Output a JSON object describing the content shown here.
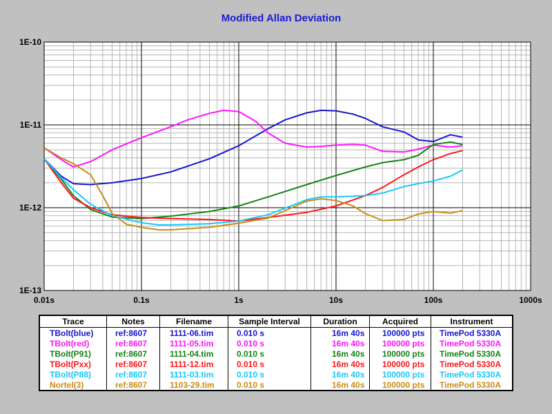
{
  "chart_data": {
    "type": "line",
    "title": "Modified Allan Deviation",
    "xscale": "log",
    "yscale": "log",
    "xlim": [
      0.01,
      1000
    ],
    "ylim": [
      1e-13,
      1e-10
    ],
    "x_tick_labels": [
      "0.01s",
      "0.1s",
      "1s",
      "10s",
      "100s",
      "1000s"
    ],
    "y_tick_labels": [
      "1E-10",
      "1E-11",
      "1E-12",
      "1E-13"
    ],
    "grid": true,
    "series": [
      {
        "name": "TBolt(blue)",
        "color": "#1414d2",
        "x": [
          0.01,
          0.015,
          0.02,
          0.03,
          0.05,
          0.1,
          0.2,
          0.5,
          1,
          2,
          3,
          5,
          7,
          10,
          15,
          20,
          30,
          50,
          70,
          100,
          150,
          200
        ],
        "y": [
          3.9e-12,
          2.4e-12,
          1.95e-12,
          1.9e-12,
          2e-12,
          2.25e-12,
          2.7e-12,
          3.9e-12,
          5.6e-12,
          9e-12,
          1.15e-11,
          1.4e-11,
          1.5e-11,
          1.48e-11,
          1.35e-11,
          1.2e-11,
          9.5e-12,
          8.2e-12,
          6.6e-12,
          6.3e-12,
          7.6e-12,
          7.1e-12
        ]
      },
      {
        "name": "TBolt(red)",
        "color": "#ff14ff",
        "x": [
          0.01,
          0.015,
          0.02,
          0.03,
          0.05,
          0.1,
          0.2,
          0.3,
          0.5,
          0.7,
          1,
          1.5,
          2,
          3,
          5,
          7,
          10,
          15,
          20,
          30,
          50,
          70,
          100,
          150,
          200
        ],
        "y": [
          5.3e-12,
          3.8e-12,
          3.1e-12,
          3.6e-12,
          5e-12,
          7e-12,
          9.5e-12,
          1.15e-11,
          1.38e-11,
          1.5e-11,
          1.45e-11,
          1.1e-11,
          8e-12,
          6e-12,
          5.4e-12,
          5.5e-12,
          5.7e-12,
          5.8e-12,
          5.7e-12,
          4.8e-12,
          4.7e-12,
          5.1e-12,
          5.7e-12,
          5.4e-12,
          5.6e-12
        ]
      },
      {
        "name": "TBolt(P91)",
        "color": "#148214",
        "x": [
          0.01,
          0.015,
          0.02,
          0.03,
          0.05,
          0.1,
          0.2,
          0.5,
          1,
          2,
          5,
          10,
          20,
          30,
          50,
          70,
          100,
          150,
          200
        ],
        "y": [
          3.9e-12,
          2.2e-12,
          1.4e-12,
          9.5e-13,
          7.7e-13,
          7.4e-13,
          7.9e-13,
          9e-13,
          1.05e-12,
          1.35e-12,
          1.9e-12,
          2.45e-12,
          3.1e-12,
          3.5e-12,
          3.8e-12,
          4.3e-12,
          5.8e-12,
          6.2e-12,
          5.8e-12
        ]
      },
      {
        "name": "TBolt(Pxx)",
        "color": "#ff1414",
        "x": [
          0.01,
          0.015,
          0.02,
          0.03,
          0.05,
          0.1,
          0.2,
          0.5,
          1,
          2,
          5,
          10,
          20,
          30,
          50,
          70,
          100,
          150,
          200
        ],
        "y": [
          3.9e-12,
          2e-12,
          1.3e-12,
          1e-12,
          8.2e-13,
          7.6e-13,
          7.4e-13,
          7.2e-13,
          6.9e-13,
          7.6e-13,
          8.8e-13,
          1.05e-12,
          1.4e-12,
          1.75e-12,
          2.5e-12,
          3.1e-12,
          3.8e-12,
          4.5e-12,
          4.9e-12
        ]
      },
      {
        "name": "TBolt(P88)",
        "color": "#14c8ff",
        "x": [
          0.01,
          0.015,
          0.02,
          0.03,
          0.05,
          0.1,
          0.15,
          0.2,
          0.5,
          1,
          2,
          5,
          7,
          10,
          20,
          30,
          50,
          70,
          100,
          150,
          200
        ],
        "y": [
          3.9e-12,
          2.3e-12,
          1.65e-12,
          1.1e-12,
          8e-13,
          6.6e-13,
          6.2e-13,
          6.2e-13,
          6.4e-13,
          6.9e-13,
          8.2e-13,
          1.25e-12,
          1.35e-12,
          1.35e-12,
          1.4e-12,
          1.5e-12,
          1.8e-12,
          1.95e-12,
          2.1e-12,
          2.4e-12,
          2.85e-12
        ]
      },
      {
        "name": "Nortel(3)",
        "color": "#c88c14",
        "x": [
          0.01,
          0.015,
          0.02,
          0.03,
          0.04,
          0.05,
          0.07,
          0.1,
          0.15,
          0.2,
          0.5,
          1,
          2,
          5,
          7,
          10,
          15,
          20,
          30,
          50,
          70,
          100,
          150,
          200
        ],
        "y": [
          5.3e-12,
          4e-12,
          3.4e-12,
          2.5e-12,
          1.4e-12,
          8.5e-13,
          6.3e-13,
          5.8e-13,
          5.4e-13,
          5.4e-13,
          5.8e-13,
          6.5e-13,
          7.5e-13,
          1.2e-12,
          1.28e-12,
          1.22e-12,
          1.05e-12,
          8.5e-13,
          7e-13,
          7.2e-13,
          8.4e-13,
          9e-13,
          8.6e-13,
          9.2e-13
        ]
      }
    ]
  },
  "table": {
    "headers": [
      "Trace",
      "Notes",
      "Filename",
      "Sample Interval",
      "Duration",
      "Acquired",
      "Instrument"
    ],
    "rows": [
      {
        "trace": "TBolt(blue)",
        "notes": "ref:8607",
        "filename": "1111-06.tim",
        "sample_interval": "0.010 s",
        "duration": "16m 40s",
        "acquired": "100000 pts",
        "instrument": "TimePod 5330A",
        "color": "#1414d2"
      },
      {
        "trace": "TBolt(red)",
        "notes": "ref:8607",
        "filename": "1111-05.tim",
        "sample_interval": "0.010 s",
        "duration": "16m 40s",
        "acquired": "100000 pts",
        "instrument": "TimePod 5330A",
        "color": "#ff14ff"
      },
      {
        "trace": "TBolt(P91)",
        "notes": "ref:8607",
        "filename": "1111-04.tim",
        "sample_interval": "0.010 s",
        "duration": "16m 40s",
        "acquired": "100000 pts",
        "instrument": "TimePod 5330A",
        "color": "#148214"
      },
      {
        "trace": "TBolt(Pxx)",
        "notes": "ref:8607",
        "filename": "1111-12.tim",
        "sample_interval": "0.010 s",
        "duration": "16m 40s",
        "acquired": "100000 pts",
        "instrument": "TimePod 5330A",
        "color": "#ff1414"
      },
      {
        "trace": "TBolt(P88)",
        "notes": "ref:8607",
        "filename": "1111-03.tim",
        "sample_interval": "0.010 s",
        "duration": "16m 40s",
        "acquired": "100000 pts",
        "instrument": "TimePod 5330A",
        "color": "#14c8ff"
      },
      {
        "trace": "Nortel(3)",
        "notes": "ref:8607",
        "filename": "1103-29.tim",
        "sample_interval": "0.010 s",
        "duration": "16m 40s",
        "acquired": "100000 pts",
        "instrument": "TimePod 5330A",
        "color": "#c88c14"
      }
    ]
  }
}
